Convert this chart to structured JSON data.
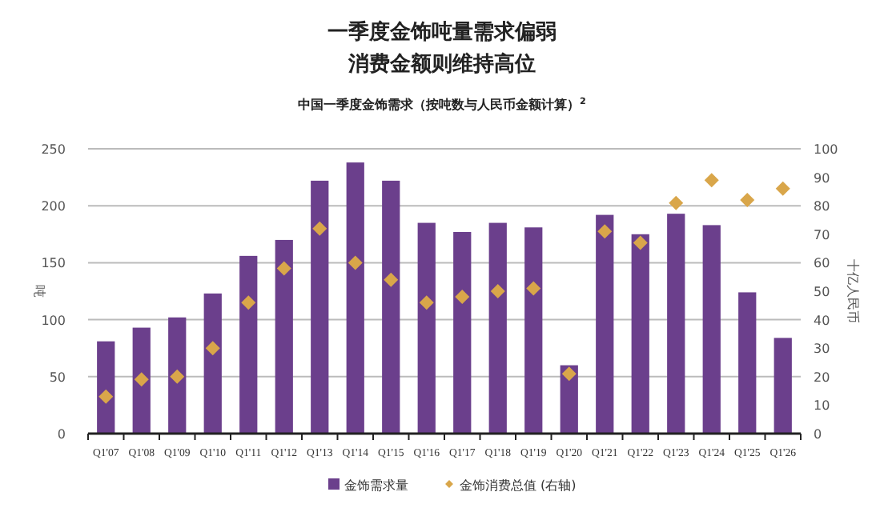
{
  "chart_data": {
    "type": "bar",
    "title": "一季度金饰吨量需求偏弱消费金额则维持高位",
    "subtitle": "中国一季度金饰需求（按吨数与人民币金额计算）$^{2}$",
    "ylabel": "吨",
    "y2label": "十亿人民币",
    "categories": [
      "Q1'07",
      "Q1'08",
      "Q1'09",
      "Q1'10",
      "Q1'11",
      "Q1'12",
      "Q1'13",
      "Q1'14",
      "Q1'15",
      "Q1'16",
      "Q1'17",
      "Q1'18",
      "Q1'19",
      "Q1'20",
      "Q1'21",
      "Q1'22",
      "Q1'23",
      "Q1'24",
      "Q1'25",
      "Q1'26"
    ],
    "series": [
      {
        "name": "金饰需求量",
        "type": "bar",
        "color": "#6b3f8c",
        "values": [
          81,
          93,
          102,
          123,
          156,
          170,
          222,
          238,
          222,
          185,
          177,
          185,
          181,
          60,
          192,
          175,
          193,
          183,
          124,
          84
        ]
      },
      {
        "name": "金饰消费总值 (右轴)",
        "type": "scatter",
        "axis": "y2",
        "marker": "diamond",
        "color": "#d9a64a",
        "values": [
          13,
          19,
          20,
          30,
          46,
          58,
          72,
          60,
          54,
          46,
          48,
          50,
          51,
          21,
          71,
          67,
          81,
          89,
          82,
          86
        ]
      }
    ],
    "ylim": [
      0,
      250
    ],
    "yticks": [
      0,
      50,
      100,
      150,
      200,
      250
    ],
    "y2lim": [
      0,
      100
    ],
    "y2ticks": [
      0,
      10,
      20,
      30,
      40,
      50,
      60,
      70,
      80,
      90,
      100
    ],
    "grid": "y",
    "legend": "bottom"
  }
}
